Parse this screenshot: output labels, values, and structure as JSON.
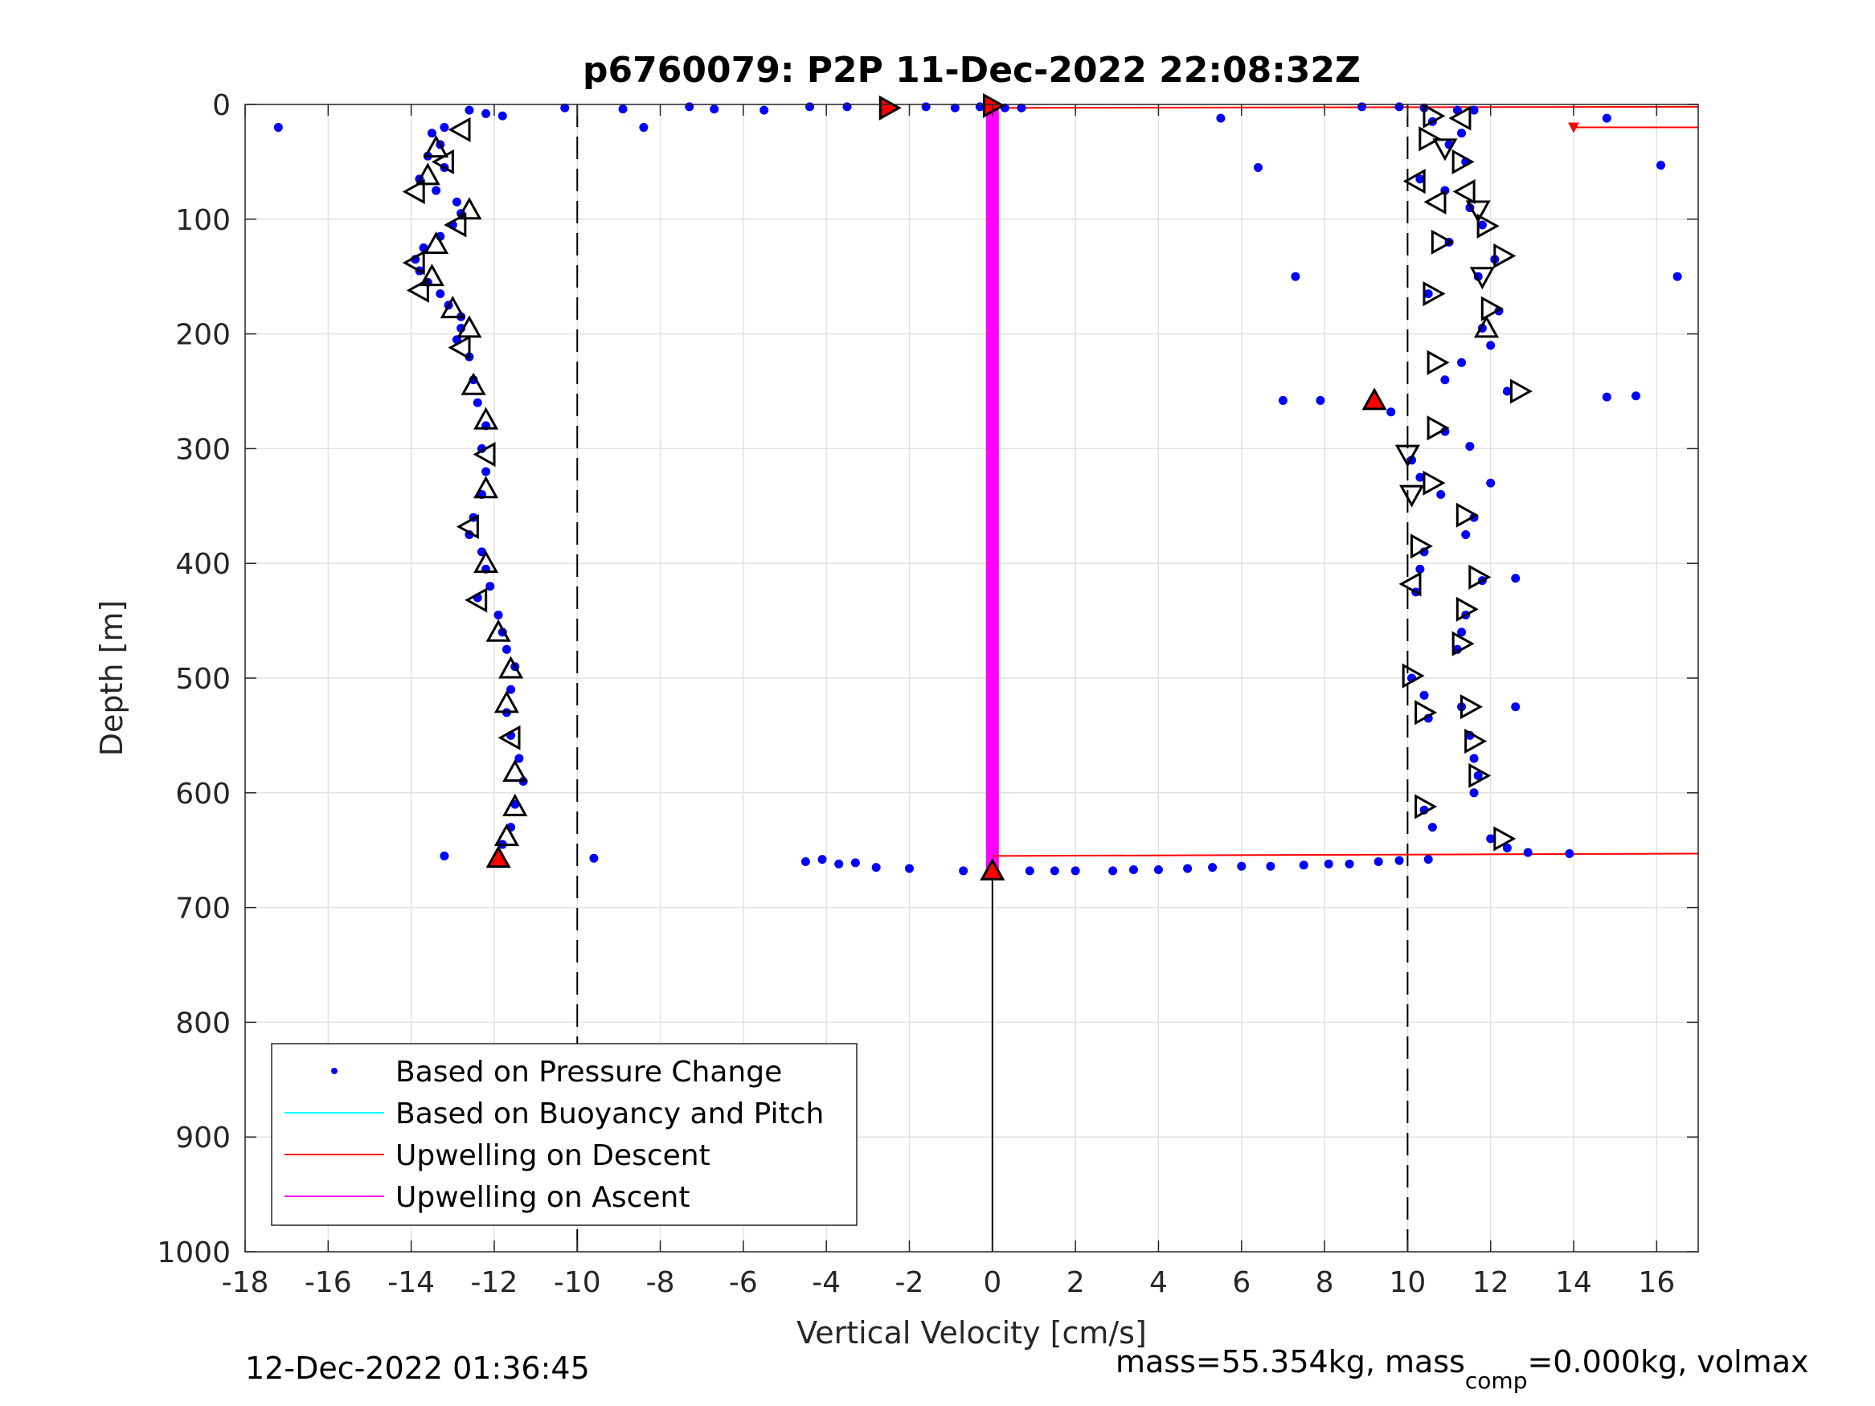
{
  "chart_data": {
    "type": "scatter",
    "title": "p6760079: P2P 11-Dec-2022 22:08:32Z",
    "xlabel": "Vertical Velocity [cm/s]",
    "ylabel": "Depth [m]",
    "xlim": [
      -18,
      17
    ],
    "ylim": [
      0,
      1000
    ],
    "y_reversed": true,
    "grid": true,
    "x_ticks": [
      -18,
      -16,
      -14,
      -12,
      -10,
      -8,
      -6,
      -4,
      -2,
      0,
      2,
      4,
      6,
      8,
      10,
      12,
      14,
      16
    ],
    "x_tick_labels": [
      "-18",
      "-16",
      "-14",
      "-12",
      "-10",
      "-8",
      "-6",
      "-4",
      "-2",
      "0",
      "2",
      "4",
      "6",
      "8",
      "10",
      "12",
      "14",
      "16"
    ],
    "y_ticks": [
      0,
      100,
      200,
      300,
      400,
      500,
      600,
      700,
      800,
      900,
      1000
    ],
    "y_tick_labels": [
      "0",
      "100",
      "200",
      "300",
      "400",
      "500",
      "600",
      "700",
      "800",
      "900",
      "1000"
    ],
    "legend": {
      "placement": "bottom-left",
      "entries": [
        {
          "label": "Based on Pressure Change",
          "color": "#0000ff",
          "kind": "dot"
        },
        {
          "label": "Based on Buoyancy and Pitch",
          "color": "#00ffff",
          "kind": "line"
        },
        {
          "label": "Upwelling on Descent",
          "color": "#ff0000",
          "kind": "line"
        },
        {
          "label": "Upwelling on Ascent",
          "color": "#ff00ff",
          "kind": "line"
        }
      ]
    },
    "colors": {
      "pressure": "#0000ff",
      "descent_upwelling": "#ff0000",
      "ascent_upwelling": "#ff00ff",
      "reference": "#000000"
    },
    "reference_lines": [
      {
        "x": -10,
        "style": "dashed"
      },
      {
        "x": 10,
        "style": "dashed"
      },
      {
        "x": 0,
        "from_depth": 670,
        "to_depth": 1000,
        "style": "solid"
      }
    ],
    "upwelling_on_ascent": {
      "x": 0,
      "depth_range": [
        3,
        668
      ]
    },
    "upwelling_on_descent": [
      [
        [
          0.3,
          3
        ],
        [
          17,
          2
        ]
      ],
      [
        [
          14,
          20
        ],
        [
          17,
          20
        ]
      ],
      [
        [
          0,
          655
        ],
        [
          17,
          653
        ]
      ]
    ],
    "pressure_change_profiles": [
      {
        "name": "descent",
        "points": [
          [
            -13.2,
            20
          ],
          [
            -13.5,
            25
          ],
          [
            -13.3,
            35
          ],
          [
            -13.6,
            45
          ],
          [
            -13.2,
            55
          ],
          [
            -13.8,
            65
          ],
          [
            -13.4,
            75
          ],
          [
            -12.9,
            85
          ],
          [
            -12.8,
            95
          ],
          [
            -13.0,
            105
          ],
          [
            -13.3,
            115
          ],
          [
            -13.7,
            125
          ],
          [
            -13.9,
            135
          ],
          [
            -13.8,
            145
          ],
          [
            -13.6,
            155
          ],
          [
            -13.3,
            165
          ],
          [
            -13.1,
            175
          ],
          [
            -12.8,
            185
          ],
          [
            -12.8,
            195
          ],
          [
            -12.9,
            205
          ],
          [
            -12.6,
            220
          ],
          [
            -12.5,
            240
          ],
          [
            -12.4,
            260
          ],
          [
            -12.2,
            280
          ],
          [
            -12.3,
            300
          ],
          [
            -12.2,
            320
          ],
          [
            -12.3,
            340
          ],
          [
            -12.5,
            360
          ],
          [
            -12.6,
            375
          ],
          [
            -12.3,
            390
          ],
          [
            -12.2,
            405
          ],
          [
            -12.1,
            420
          ],
          [
            -12.4,
            430
          ],
          [
            -11.9,
            445
          ],
          [
            -11.8,
            460
          ],
          [
            -11.7,
            475
          ],
          [
            -11.5,
            490
          ],
          [
            -11.6,
            510
          ],
          [
            -11.7,
            530
          ],
          [
            -11.6,
            550
          ],
          [
            -11.4,
            570
          ],
          [
            -11.3,
            590
          ],
          [
            -11.5,
            610
          ],
          [
            -11.6,
            630
          ],
          [
            -11.8,
            645
          ],
          [
            -11.9,
            655
          ]
        ]
      },
      {
        "name": "surface_transition",
        "points": [
          [
            -17.2,
            20
          ],
          [
            -12.6,
            5
          ],
          [
            -12.2,
            8
          ],
          [
            -11.8,
            10
          ],
          [
            -10.3,
            3
          ],
          [
            -8.9,
            4
          ],
          [
            -8.4,
            20
          ],
          [
            -7.3,
            2
          ],
          [
            -6.7,
            4
          ],
          [
            -5.5,
            5
          ],
          [
            -4.4,
            2
          ],
          [
            -3.5,
            2
          ],
          [
            -2.6,
            3
          ],
          [
            -1.6,
            2
          ],
          [
            -0.9,
            3
          ],
          [
            -0.3,
            2
          ],
          [
            0.3,
            3
          ],
          [
            0.7,
            3
          ]
        ]
      },
      {
        "name": "bottom_transition",
        "points": [
          [
            -13.2,
            655
          ],
          [
            -9.6,
            657
          ],
          [
            -4.5,
            660
          ],
          [
            -4.1,
            658
          ],
          [
            -3.7,
            662
          ],
          [
            -3.3,
            661
          ],
          [
            -2.8,
            665
          ],
          [
            -2.0,
            666
          ],
          [
            -0.7,
            668
          ],
          [
            0.0,
            670
          ],
          [
            0.9,
            668
          ],
          [
            1.5,
            668
          ],
          [
            2.0,
            668
          ],
          [
            2.9,
            668
          ],
          [
            3.4,
            667
          ],
          [
            4.0,
            667
          ],
          [
            4.7,
            666
          ],
          [
            5.3,
            665
          ],
          [
            6.0,
            664
          ],
          [
            6.7,
            664
          ],
          [
            7.5,
            663
          ],
          [
            8.1,
            662
          ],
          [
            8.6,
            662
          ],
          [
            9.3,
            660
          ],
          [
            9.8,
            659
          ],
          [
            10.5,
            658
          ]
        ]
      },
      {
        "name": "ascent",
        "points": [
          [
            8.9,
            2
          ],
          [
            9.8,
            2
          ],
          [
            10.4,
            3
          ],
          [
            11.2,
            5
          ],
          [
            11.6,
            5
          ],
          [
            10.6,
            15
          ],
          [
            11.3,
            25
          ],
          [
            11.0,
            35
          ],
          [
            11.4,
            50
          ],
          [
            10.3,
            65
          ],
          [
            10.9,
            75
          ],
          [
            11.5,
            90
          ],
          [
            11.8,
            105
          ],
          [
            11.0,
            120
          ],
          [
            12.1,
            135
          ],
          [
            11.7,
            150
          ],
          [
            10.5,
            165
          ],
          [
            12.2,
            180
          ],
          [
            11.8,
            195
          ],
          [
            12.0,
            210
          ],
          [
            11.3,
            225
          ],
          [
            10.9,
            240
          ],
          [
            12.4,
            250
          ],
          [
            9.2,
            258
          ],
          [
            9.6,
            268
          ],
          [
            10.9,
            285
          ],
          [
            11.5,
            298
          ],
          [
            10.1,
            310
          ],
          [
            10.3,
            325
          ],
          [
            10.8,
            340
          ],
          [
            11.6,
            360
          ],
          [
            11.4,
            375
          ],
          [
            10.4,
            390
          ],
          [
            10.3,
            405
          ],
          [
            11.8,
            415
          ],
          [
            10.2,
            425
          ],
          [
            11.4,
            445
          ],
          [
            11.3,
            460
          ],
          [
            11.2,
            475
          ],
          [
            10.1,
            500
          ],
          [
            10.4,
            515
          ],
          [
            11.3,
            525
          ],
          [
            10.5,
            535
          ],
          [
            11.5,
            550
          ],
          [
            11.6,
            570
          ],
          [
            11.7,
            585
          ],
          [
            11.6,
            600
          ],
          [
            10.4,
            615
          ],
          [
            10.6,
            630
          ],
          [
            12.0,
            640
          ],
          [
            12.4,
            648
          ],
          [
            12.9,
            652
          ],
          [
            13.9,
            653
          ],
          [
            5.5,
            12
          ],
          [
            6.4,
            55
          ],
          [
            7.3,
            150
          ],
          [
            7.0,
            258
          ],
          [
            7.9,
            258
          ],
          [
            14.8,
            12
          ],
          [
            16.1,
            53
          ],
          [
            16.5,
            150
          ],
          [
            14.8,
            255
          ],
          [
            15.5,
            254
          ],
          [
            12.6,
            413
          ],
          [
            12.6,
            525
          ],
          [
            12.0,
            330
          ]
        ]
      }
    ],
    "markers": [
      {
        "x": -2.5,
        "y": 3,
        "shape": "tri-right",
        "fill": "#ff0000"
      },
      {
        "x": 0.0,
        "y": 1,
        "shape": "tri-right",
        "fill": "#ff0000"
      },
      {
        "x": -11.9,
        "y": 657,
        "shape": "tri-up",
        "fill": "#ff0000"
      },
      {
        "x": 0.0,
        "y": 668,
        "shape": "tri-up",
        "fill": "#ff0000"
      },
      {
        "x": 9.2,
        "y": 258,
        "shape": "tri-up",
        "fill": "#ff0000"
      },
      {
        "x": -12.8,
        "y": 22,
        "shape": "tri-left",
        "fill": "none"
      },
      {
        "x": -13.4,
        "y": 38,
        "shape": "tri-up",
        "fill": "none"
      },
      {
        "x": -13.2,
        "y": 50,
        "shape": "tri-left",
        "fill": "none"
      },
      {
        "x": -13.6,
        "y": 62,
        "shape": "tri-up",
        "fill": "none"
      },
      {
        "x": -13.9,
        "y": 76,
        "shape": "tri-left",
        "fill": "none"
      },
      {
        "x": -12.6,
        "y": 92,
        "shape": "tri-up",
        "fill": "none"
      },
      {
        "x": -12.9,
        "y": 105,
        "shape": "tri-left",
        "fill": "none"
      },
      {
        "x": -13.4,
        "y": 122,
        "shape": "tri-up",
        "fill": "none"
      },
      {
        "x": -13.9,
        "y": 138,
        "shape": "tri-left",
        "fill": "none"
      },
      {
        "x": -13.5,
        "y": 150,
        "shape": "tri-up",
        "fill": "none"
      },
      {
        "x": -13.8,
        "y": 162,
        "shape": "tri-left",
        "fill": "none"
      },
      {
        "x": -13.0,
        "y": 178,
        "shape": "tri-up",
        "fill": "none"
      },
      {
        "x": -12.6,
        "y": 195,
        "shape": "tri-up",
        "fill": "none"
      },
      {
        "x": -12.8,
        "y": 212,
        "shape": "tri-left",
        "fill": "none"
      },
      {
        "x": -12.5,
        "y": 245,
        "shape": "tri-up",
        "fill": "none"
      },
      {
        "x": -12.2,
        "y": 275,
        "shape": "tri-up",
        "fill": "none"
      },
      {
        "x": -12.2,
        "y": 305,
        "shape": "tri-left",
        "fill": "none"
      },
      {
        "x": -12.2,
        "y": 335,
        "shape": "tri-up",
        "fill": "none"
      },
      {
        "x": -12.6,
        "y": 368,
        "shape": "tri-left",
        "fill": "none"
      },
      {
        "x": -12.2,
        "y": 400,
        "shape": "tri-up",
        "fill": "none"
      },
      {
        "x": -12.4,
        "y": 432,
        "shape": "tri-left",
        "fill": "none"
      },
      {
        "x": -11.9,
        "y": 460,
        "shape": "tri-up",
        "fill": "none"
      },
      {
        "x": -11.6,
        "y": 492,
        "shape": "tri-up",
        "fill": "none"
      },
      {
        "x": -11.7,
        "y": 522,
        "shape": "tri-up",
        "fill": "none"
      },
      {
        "x": -11.6,
        "y": 552,
        "shape": "tri-left",
        "fill": "none"
      },
      {
        "x": -11.5,
        "y": 582,
        "shape": "tri-up",
        "fill": "none"
      },
      {
        "x": -11.5,
        "y": 612,
        "shape": "tri-up",
        "fill": "none"
      },
      {
        "x": -11.7,
        "y": 638,
        "shape": "tri-up",
        "fill": "none"
      },
      {
        "x": 10.6,
        "y": 10,
        "shape": "tri-right",
        "fill": "none"
      },
      {
        "x": 11.3,
        "y": 12,
        "shape": "tri-left",
        "fill": "none"
      },
      {
        "x": 10.5,
        "y": 30,
        "shape": "tri-right",
        "fill": "none"
      },
      {
        "x": 10.9,
        "y": 38,
        "shape": "tri-down",
        "fill": "none"
      },
      {
        "x": 11.3,
        "y": 50,
        "shape": "tri-right",
        "fill": "none"
      },
      {
        "x": 10.2,
        "y": 67,
        "shape": "tri-left",
        "fill": "none"
      },
      {
        "x": 11.4,
        "y": 76,
        "shape": "tri-left",
        "fill": "none"
      },
      {
        "x": 10.7,
        "y": 85,
        "shape": "tri-left",
        "fill": "none"
      },
      {
        "x": 11.7,
        "y": 92,
        "shape": "tri-down",
        "fill": "none"
      },
      {
        "x": 11.9,
        "y": 106,
        "shape": "tri-right",
        "fill": "none"
      },
      {
        "x": 10.8,
        "y": 120,
        "shape": "tri-right",
        "fill": "none"
      },
      {
        "x": 12.3,
        "y": 132,
        "shape": "tri-right",
        "fill": "none"
      },
      {
        "x": 11.8,
        "y": 150,
        "shape": "tri-down",
        "fill": "none"
      },
      {
        "x": 10.6,
        "y": 165,
        "shape": "tri-right",
        "fill": "none"
      },
      {
        "x": 12.0,
        "y": 178,
        "shape": "tri-right",
        "fill": "none"
      },
      {
        "x": 11.9,
        "y": 195,
        "shape": "tri-up",
        "fill": "none"
      },
      {
        "x": 10.7,
        "y": 225,
        "shape": "tri-right",
        "fill": "none"
      },
      {
        "x": 12.7,
        "y": 250,
        "shape": "tri-right",
        "fill": "none"
      },
      {
        "x": 10.7,
        "y": 282,
        "shape": "tri-right",
        "fill": "none"
      },
      {
        "x": 10.0,
        "y": 305,
        "shape": "tri-down",
        "fill": "none"
      },
      {
        "x": 10.6,
        "y": 330,
        "shape": "tri-right",
        "fill": "none"
      },
      {
        "x": 10.1,
        "y": 340,
        "shape": "tri-down",
        "fill": "none"
      },
      {
        "x": 11.4,
        "y": 358,
        "shape": "tri-right",
        "fill": "none"
      },
      {
        "x": 10.3,
        "y": 385,
        "shape": "tri-right",
        "fill": "none"
      },
      {
        "x": 11.7,
        "y": 412,
        "shape": "tri-right",
        "fill": "none"
      },
      {
        "x": 10.1,
        "y": 418,
        "shape": "tri-left",
        "fill": "none"
      },
      {
        "x": 11.4,
        "y": 440,
        "shape": "tri-right",
        "fill": "none"
      },
      {
        "x": 11.3,
        "y": 470,
        "shape": "tri-right",
        "fill": "none"
      },
      {
        "x": 10.1,
        "y": 498,
        "shape": "tri-right",
        "fill": "none"
      },
      {
        "x": 11.5,
        "y": 525,
        "shape": "tri-right",
        "fill": "none"
      },
      {
        "x": 10.4,
        "y": 530,
        "shape": "tri-right",
        "fill": "none"
      },
      {
        "x": 11.6,
        "y": 555,
        "shape": "tri-right",
        "fill": "none"
      },
      {
        "x": 11.7,
        "y": 585,
        "shape": "tri-right",
        "fill": "none"
      },
      {
        "x": 10.4,
        "y": 612,
        "shape": "tri-right",
        "fill": "none"
      },
      {
        "x": 12.3,
        "y": 640,
        "shape": "tri-right",
        "fill": "none"
      }
    ]
  },
  "footer": {
    "timestamp": "12-Dec-2022 01:36:45",
    "mass_prefix": "mass=55.354kg, mass",
    "mass_subscript": "comp",
    "mass_suffix": "=0.000kg, volmax"
  }
}
